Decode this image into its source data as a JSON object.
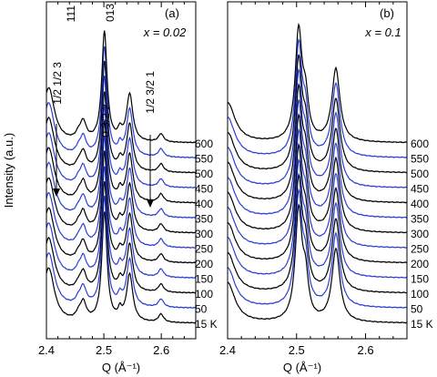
{
  "figure": {
    "ylabel": "Intensity (a.u.)",
    "line_colors": [
      "#000000",
      "#2b3fd6"
    ]
  },
  "chart_data": [
    {
      "type": "line",
      "panel_label": "(a)",
      "condition": "x = 0.02",
      "xlabel": "Q (Å⁻¹)",
      "ylabel": "Intensity (a.u.)",
      "xlim": [
        2.4,
        2.66
      ],
      "xticks": [
        "2.4",
        "2.5",
        "2.6"
      ],
      "y_scale": "stacked offsets, arbitrary units",
      "temperatures": [
        "15 K",
        "50",
        "100",
        "150",
        "200",
        "250",
        "300",
        "350",
        "400",
        "450",
        "500",
        "550",
        "600"
      ],
      "series_colors": [
        "black",
        "blue",
        "black",
        "blue",
        "black",
        "blue",
        "black",
        "blue",
        "black",
        "blue",
        "black",
        "blue",
        "black"
      ],
      "peaks": [
        {
          "q": 2.404,
          "amp": 3.0,
          "w": 0.012
        },
        {
          "q": 2.4555,
          "amp": 0.28,
          "w": 0.0055
        },
        {
          "q": 2.464,
          "amp": 1.0,
          "w": 0.0065
        },
        {
          "q": 2.501,
          "amp": 6.0,
          "w": 0.0055
        },
        {
          "q": 2.528,
          "amp": 0.5,
          "w": 0.004
        },
        {
          "q": 2.545,
          "amp": 2.6,
          "w": 0.0065
        },
        {
          "q": 2.5995,
          "amp": 0.45,
          "w": 0.0055
        }
      ],
      "annotations": [
        {
          "text": "111",
          "q": 2.497
        },
        {
          "text": "013",
          "q": 2.545
        },
        {
          "text": "1/2 1/2 3",
          "q": 2.455
        },
        {
          "text": "0 3/2 2",
          "q": 2.527
        },
        {
          "text": "1/2 3/2 1",
          "q": 2.6
        }
      ]
    },
    {
      "type": "line",
      "panel_label": "(b)",
      "condition": "x = 0.1",
      "xlabel": "Q (Å⁻¹)",
      "xlim": [
        2.4,
        2.66
      ],
      "xticks": [
        "2.4",
        "2.5",
        "2.6"
      ],
      "y_scale": "stacked offsets, arbitrary units",
      "temperatures": [
        "15 K",
        "50",
        "100",
        "150",
        "200",
        "250",
        "300",
        "350",
        "400",
        "450",
        "500",
        "550",
        "600"
      ],
      "series_colors": [
        "black",
        "blue",
        "black",
        "blue",
        "black",
        "blue",
        "black",
        "blue",
        "black",
        "blue",
        "black",
        "blue",
        "black"
      ],
      "peaks": [
        {
          "q": 2.4,
          "amp": 2.2,
          "w": 0.013
        },
        {
          "q": 2.503,
          "amp": 6.0,
          "w": 0.006
        },
        {
          "q": 2.513,
          "amp": 2.0,
          "w": 0.005
        },
        {
          "q": 2.557,
          "amp": 4.0,
          "w": 0.007
        }
      ],
      "annotations": []
    }
  ]
}
